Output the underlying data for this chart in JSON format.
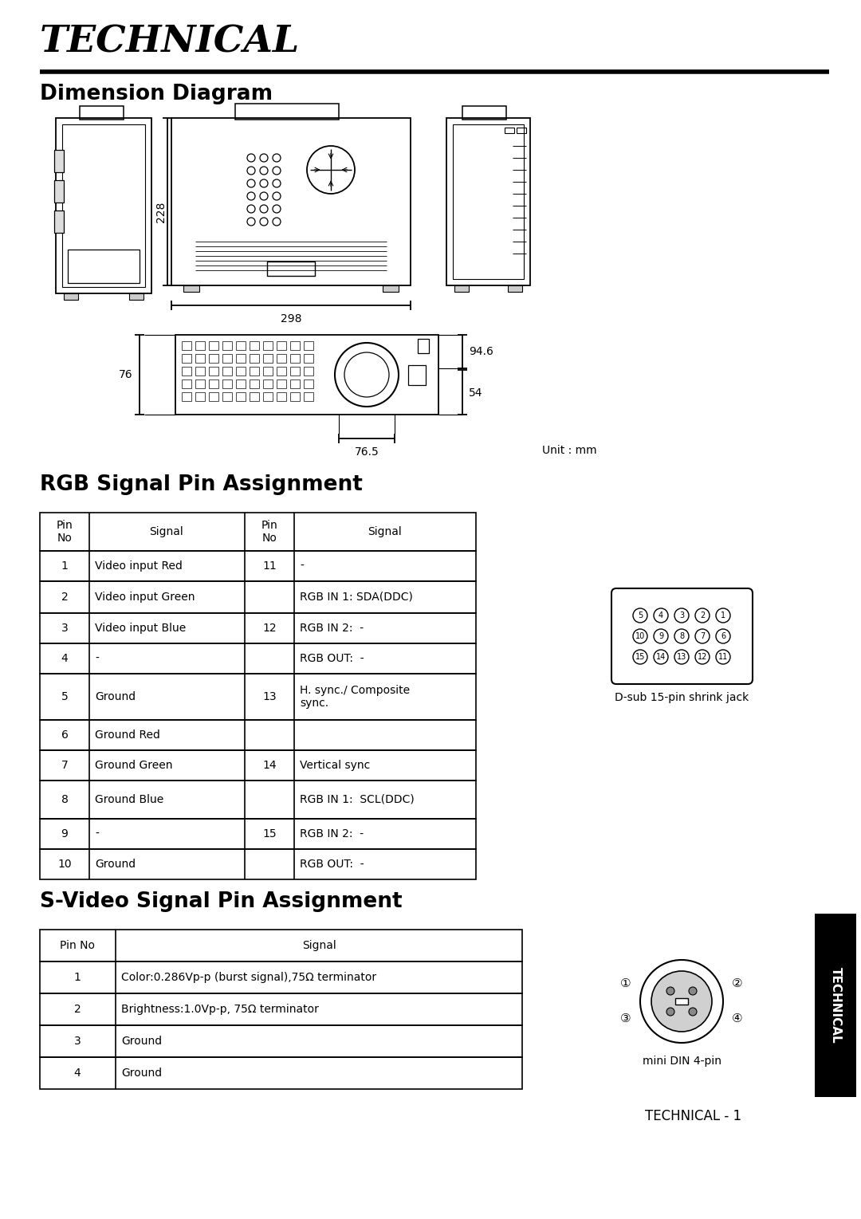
{
  "title": "TECHNICAL",
  "section1": "Dimension Diagram",
  "section2": "RGB Signal Pin Assignment",
  "section3": "S-Video Signal Pin Assignment",
  "dim_228": "228",
  "dim_298": "298",
  "dim_76": "76",
  "dim_94_6": "94.6",
  "dim_54": "54",
  "dim_76_5": "76.5",
  "unit": "Unit : mm",
  "rgb_rows": [
    [
      "1",
      "Video input Red",
      "11",
      "-"
    ],
    [
      "2",
      "Video input Green",
      "",
      "RGB IN 1: SDA(DDC)"
    ],
    [
      "3",
      "Video input Blue",
      "12",
      "RGB IN 2:  -"
    ],
    [
      "4",
      "-",
      "",
      "RGB OUT:  -"
    ],
    [
      "5",
      "Ground",
      "13",
      "H. sync./ Composite\nsync."
    ],
    [
      "6",
      "Ground Red",
      "",
      ""
    ],
    [
      "7",
      "Ground Green",
      "14",
      "Vertical sync"
    ],
    [
      "8",
      "Ground Blue",
      "",
      "RGB IN 1:  SCL(DDC)"
    ],
    [
      "9",
      "-",
      "15",
      "RGB IN 2:  -"
    ],
    [
      "10",
      "Ground",
      "",
      "RGB OUT:  -"
    ]
  ],
  "dsub_label": "D-sub 15-pin shrink jack",
  "svideo_headers": [
    "Pin No",
    "Signal"
  ],
  "svideo_rows": [
    [
      "1",
      "Color:0.286Vp-p (burst signal),75Ω terminator"
    ],
    [
      "2",
      "Brightness:1.0Vp-p, 75Ω terminator"
    ],
    [
      "3",
      "Ground"
    ],
    [
      "4",
      "Ground"
    ]
  ],
  "minidin_label": "mini DIN 4-pin",
  "footer": "TECHNICAL - 1",
  "bg_color": "#ffffff",
  "text_color": "#000000"
}
